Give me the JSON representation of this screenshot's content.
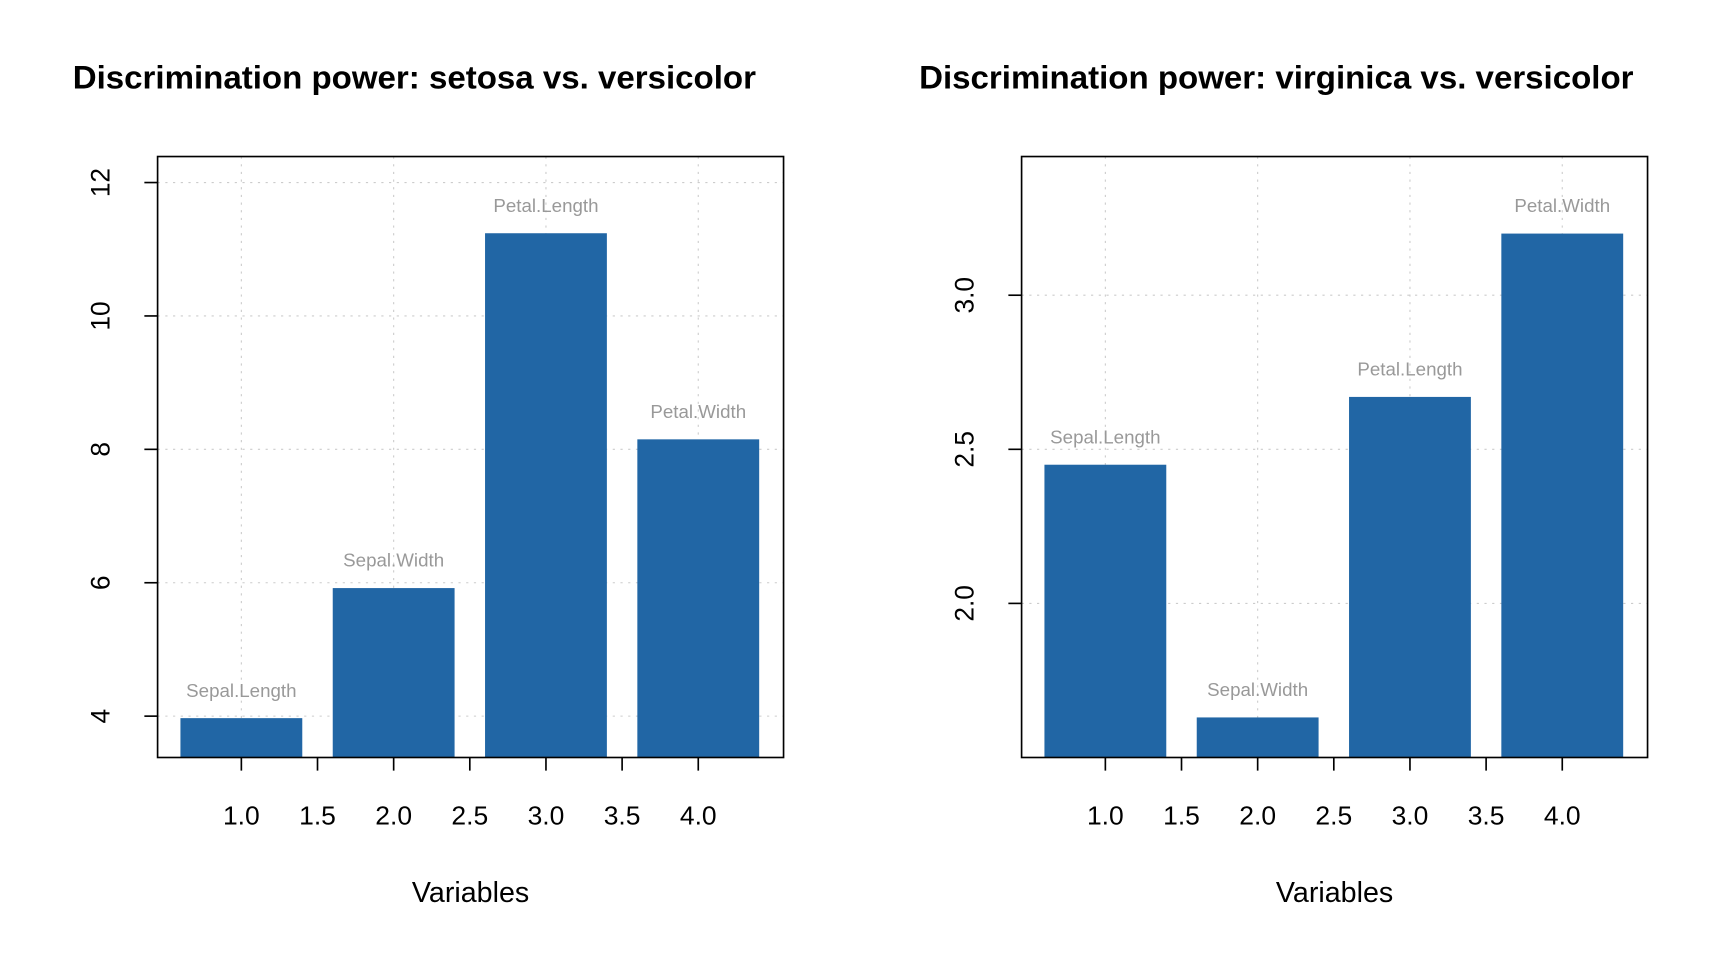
{
  "chart_data": [
    {
      "type": "bar",
      "title": "Discrimination power: setosa vs. versicolor",
      "x_label": "Variables",
      "x": [
        1,
        2,
        3,
        4
      ],
      "labels": [
        "Sepal.Length",
        "Sepal.Width",
        "Petal.Length",
        "Petal.Width"
      ],
      "values": [
        3.97,
        5.92,
        11.24,
        8.15
      ],
      "color": "#2166a5",
      "xlim": [
        0.45,
        4.56
      ],
      "ylim": [
        3.38,
        12.39
      ],
      "xticks": [
        {
          "value": 1,
          "label": "1.0"
        },
        {
          "value": 1.5,
          "label": "1.5"
        },
        {
          "value": 2,
          "label": "2.0"
        },
        {
          "value": 2.5,
          "label": "2.5"
        },
        {
          "value": 3,
          "label": "3.0"
        },
        {
          "value": 3.5,
          "label": "3.5"
        },
        {
          "value": 4,
          "label": "4.0"
        }
      ],
      "yticks": [
        4,
        6,
        8,
        10,
        12
      ],
      "grid": true
    },
    {
      "type": "bar",
      "title": "Discrimination power: virginica vs. versicolor",
      "x_label": "Variables",
      "x": [
        1,
        2,
        3,
        4
      ],
      "labels": [
        "Sepal.Length",
        "Sepal.Width",
        "Petal.Length",
        "Petal.Width"
      ],
      "values": [
        2.45,
        1.63,
        2.67,
        3.2
      ],
      "color": "#2166a5",
      "xlim": [
        0.45,
        4.56
      ],
      "ylim": [
        1.5,
        3.45
      ],
      "xticks": [
        {
          "value": 1,
          "label": "1.0"
        },
        {
          "value": 1.5,
          "label": "1.5"
        },
        {
          "value": 2,
          "label": "2.0"
        },
        {
          "value": 2.5,
          "label": "2.5"
        },
        {
          "value": 3,
          "label": "3.0"
        },
        {
          "value": 3.5,
          "label": "3.5"
        },
        {
          "value": 4,
          "label": "4.0"
        }
      ],
      "yticks": [
        {
          "value": 2,
          "label": "2.0"
        },
        {
          "value": 2.5,
          "label": "2.5"
        },
        {
          "value": 3,
          "label": "3.0"
        }
      ],
      "grid": true
    }
  ]
}
